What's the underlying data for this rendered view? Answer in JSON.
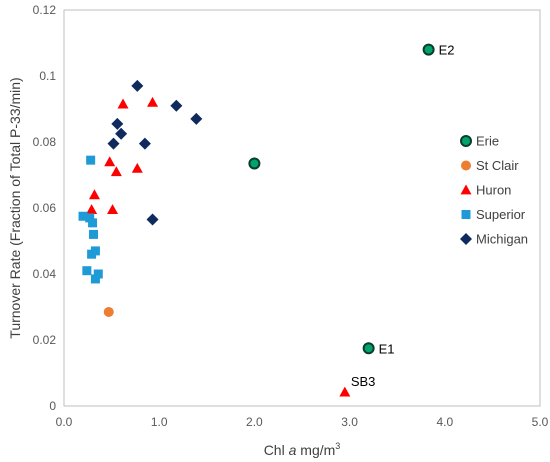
{
  "chart_data": {
    "type": "scatter",
    "title": "",
    "xlabel_prefix": "Chl ",
    "xlabel_italic": "a",
    "xlabel_unit": " mg/m",
    "xlabel_sup": "3",
    "ylabel": "Turnover Rate (Fraction of Total P-33/min)",
    "xlim": [
      0,
      5
    ],
    "ylim": [
      0,
      0.12
    ],
    "xticks": [
      "0.0",
      "1.0",
      "2.0",
      "3.0",
      "4.0",
      "5.0"
    ],
    "xtick_values": [
      0,
      1,
      2,
      3,
      4,
      5
    ],
    "yticks": [
      "0",
      "0.02",
      "0.04",
      "0.06",
      "0.08",
      "0.1",
      "0.12"
    ],
    "ytick_values": [
      0,
      0.02,
      0.04,
      0.06,
      0.08,
      0.1,
      0.12
    ],
    "grid": false,
    "legend_position": "right",
    "series": [
      {
        "name": "Erie",
        "marker": "circle",
        "color": "#00A36C",
        "edge": "#0b3d2e",
        "points": [
          [
            3.83,
            0.108
          ],
          [
            2.0,
            0.0735
          ],
          [
            3.2,
            0.0175
          ]
        ]
      },
      {
        "name": "St Clair",
        "marker": "circle",
        "color": "#ED7D31",
        "points": [
          [
            0.47,
            0.0285
          ]
        ]
      },
      {
        "name": "Huron",
        "marker": "triangle",
        "color": "#FF0000",
        "points": [
          [
            0.62,
            0.0915
          ],
          [
            0.93,
            0.092
          ],
          [
            0.48,
            0.074
          ],
          [
            0.77,
            0.072
          ],
          [
            0.55,
            0.071
          ],
          [
            0.32,
            0.064
          ],
          [
            0.29,
            0.0595
          ],
          [
            0.51,
            0.0595
          ],
          [
            2.95,
            0.0042
          ]
        ]
      },
      {
        "name": "Superior",
        "marker": "square",
        "color": "#1E9BD7",
        "points": [
          [
            0.28,
            0.0745
          ],
          [
            0.2,
            0.0575
          ],
          [
            0.27,
            0.057
          ],
          [
            0.3,
            0.0555
          ],
          [
            0.31,
            0.052
          ],
          [
            0.33,
            0.047
          ],
          [
            0.29,
            0.046
          ],
          [
            0.36,
            0.04
          ],
          [
            0.24,
            0.041
          ],
          [
            0.33,
            0.0385
          ]
        ]
      },
      {
        "name": "Michigan",
        "marker": "diamond",
        "color": "#0F2A5C",
        "points": [
          [
            0.77,
            0.097
          ],
          [
            1.18,
            0.091
          ],
          [
            1.39,
            0.087
          ],
          [
            0.56,
            0.0855
          ],
          [
            0.6,
            0.0825
          ],
          [
            0.52,
            0.0795
          ],
          [
            0.85,
            0.0795
          ],
          [
            0.93,
            0.0565
          ]
        ]
      }
    ],
    "annotations": [
      {
        "text": "E2",
        "x": 3.83,
        "y": 0.108
      },
      {
        "text": "E1",
        "x": 3.2,
        "y": 0.0175
      },
      {
        "text": "SB3",
        "x": 2.95,
        "y": 0.0042
      }
    ]
  }
}
